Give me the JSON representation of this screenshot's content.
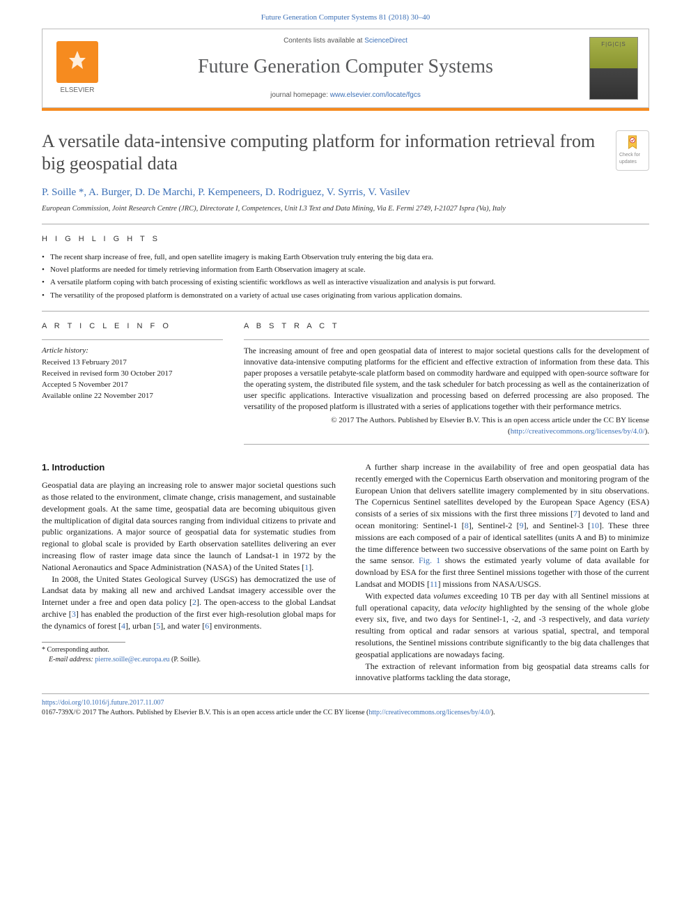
{
  "header": {
    "running_head": "Future Generation Computer Systems 81 (2018) 30–40",
    "contents_prefix": "Contents lists available at ",
    "contents_link": "ScienceDirect",
    "journal_name": "Future Generation Computer Systems",
    "homepage_prefix": "journal homepage: ",
    "homepage_link": "www.elsevier.com/locate/fgcs",
    "publisher_label": "ELSEVIER",
    "updates_badge": "Check for updates"
  },
  "colors": {
    "link": "#3b6fb6",
    "accent_orange": "#f68b1f",
    "title_gray": "#4a4a4a",
    "rule_gray": "#aaaaaa",
    "body_text": "#1a1a1a"
  },
  "title": "A versatile data-intensive computing platform for information retrieval from big geospatial data",
  "authors_line": "P. Soille *, A. Burger, D. De Marchi, P. Kempeneers, D. Rodriguez, V. Syrris, V. Vasilev",
  "affiliation": "European Commission, Joint Research Centre (JRC), Directorate I, Competences, Unit I.3 Text and Data Mining, Via E. Fermi 2749, I-21027 Ispra (Va), Italy",
  "highlights": {
    "label": "H I G H L I G H T S",
    "items": [
      "The recent sharp increase of free, full, and open satellite imagery is making Earth Observation truly entering the big data era.",
      "Novel platforms are needed for timely retrieving information from Earth Observation imagery at scale.",
      "A versatile platform coping with batch processing of existing scientific workflows as well as interactive visualization and analysis is put forward.",
      "The versatility of the proposed platform is demonstrated on a variety of actual use cases originating from various application domains."
    ]
  },
  "info": {
    "label": "A R T I C L E   I N F O",
    "history_head": "Article history:",
    "lines": [
      "Received 13 February 2017",
      "Received in revised form 30 October 2017",
      "Accepted 5 November 2017",
      "Available online 22 November 2017"
    ]
  },
  "abstract": {
    "label": "A B S T R A C T",
    "text": "The increasing amount of free and open geospatial data of interest to major societal questions calls for the development of innovative data-intensive computing platforms for the efficient and effective extraction of information from these data. This paper proposes a versatile petabyte-scale platform based on commodity hardware and equipped with open-source software for the operating system, the distributed file system, and the task scheduler for batch processing as well as the containerization of user specific applications. Interactive visualization and processing based on deferred processing are also proposed. The versatility of the proposed platform is illustrated with a series of applications together with their performance metrics.",
    "copyright_line": "© 2017 The Authors. Published by Elsevier B.V. This is an open access article under the CC BY license",
    "license_link_open": "(",
    "license_url": "http://creativecommons.org/licenses/by/4.0/",
    "license_link_close": ")."
  },
  "body": {
    "section_heading": "1. Introduction",
    "p1": "Geospatial data are playing an increasing role to answer major societal questions such as those related to the environment, climate change, crisis management, and sustainable development goals. At the same time, geospatial data are becoming ubiquitous given the multiplication of digital data sources ranging from individual citizens to private and public organizations. A major source of geospatial data for systematic studies from regional to global scale is provided by Earth observation satellites delivering an ever increasing flow of raster image data since the launch of Landsat-1 in 1972 by the National Aeronautics and Space Administration (NASA) of the United States [1].",
    "p2": "In 2008, the United States Geological Survey (USGS) has democratized the use of Landsat data by making all new and archived Landsat imagery accessible over the Internet under a free and open data policy [2]. The open-access to the global Landsat archive [3] has enabled the production of the first ever high-resolution global maps for the dynamics of forest [4], urban [5], and water [6] environments.",
    "p3": "A further sharp increase in the availability of free and open geospatial data has recently emerged with the Copernicus Earth observation and monitoring program of the European Union that delivers satellite imagery complemented by in situ observations. The Copernicus Sentinel satellites developed by the European Space Agency (ESA) consists of a series of six missions with the first three missions [7] devoted to land and ocean monitoring: Sentinel-1 [8], Sentinel-2 [9], and Sentinel-3 [10]. These three missions are each composed of a pair of identical satellites (units A and B) to minimize the time difference between two successive observations of the same point on Earth by the same sensor. Fig. 1 shows the estimated yearly volume of data available for download by ESA for the first three Sentinel missions together with those of the current Landsat and MODIS [11] missions from NASA/USGS.",
    "p4_a": "With expected data ",
    "p4_vol": "volumes",
    "p4_b": " exceeding 10 TB per day with all Sentinel missions at full operational capacity, data ",
    "p4_vel": "velocity",
    "p4_c": " highlighted by the sensing of the whole globe every six, five, and two days for Sentinel-1, -2, and -3 respectively, and data ",
    "p4_var": "variety",
    "p4_d": " resulting from optical and radar sensors at various spatial, spectral, and temporal resolutions, the Sentinel missions contribute significantly to the big data challenges that geospatial applications are nowadays facing.",
    "p5": "The extraction of relevant information from big geospatial data streams calls for innovative platforms tackling the data storage,"
  },
  "footnote": {
    "corr": "* Corresponding author.",
    "email_label": "E-mail address: ",
    "email": "pierre.soille@ec.europa.eu",
    "email_suffix": " (P. Soille)."
  },
  "footer": {
    "doi": "https://doi.org/10.1016/j.future.2017.11.007",
    "issn_line_a": "0167-739X/© 2017 The Authors. Published by Elsevier B.V. This is an open access article under the CC BY license (",
    "issn_link": "http://creativecommons.org/licenses/by/4.0/",
    "issn_line_b": ")."
  }
}
